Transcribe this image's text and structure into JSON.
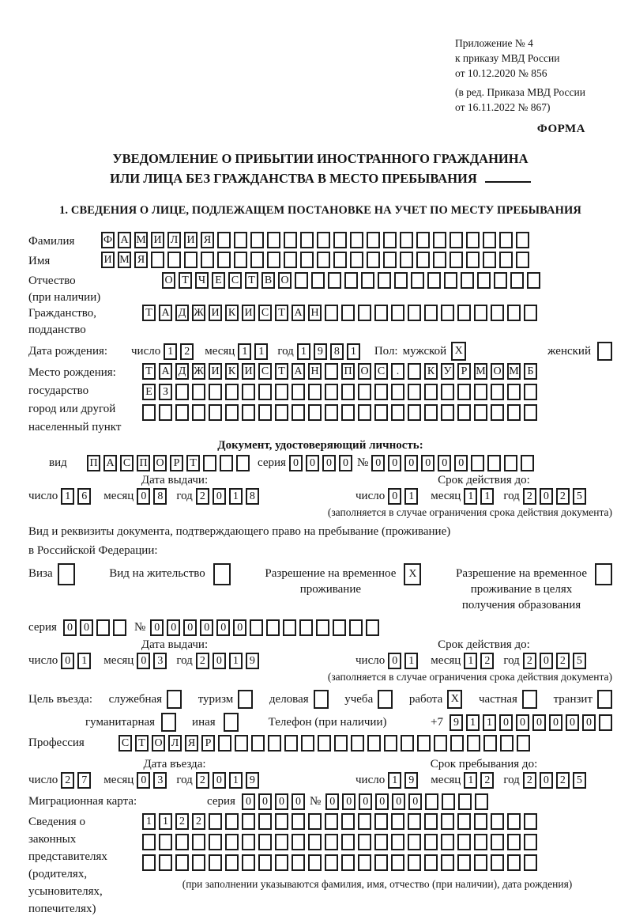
{
  "header": {
    "lines": [
      "Приложение № 4",
      "к приказу МВД России",
      "от 10.12.2020 № 856"
    ],
    "amendment_lines": [
      "(в ред. Приказа МВД России",
      "от 16.11.2022 № 867)"
    ],
    "form_label": "ФОРМА"
  },
  "title": {
    "line1": "УВЕДОМЛЕНИЕ О ПРИБЫТИИ ИНОСТРАННОГО ГРАЖДАНИНА",
    "line2": "ИЛИ ЛИЦА БЕЗ ГРАЖДАНСТВА В МЕСТО ПРЕБЫВАНИЯ"
  },
  "section1_heading": "1. СВЕДЕНИЯ О ЛИЦЕ, ПОДЛЕЖАЩЕМ ПОСТАНОВКЕ НА УЧЕТ ПО МЕСТУ ПРЕБЫВАНИЯ",
  "date_labels": {
    "day": "число",
    "month": "месяц",
    "year": "год"
  },
  "person": {
    "surname": {
      "label": "Фамилия",
      "value": "ФАМИЛИЯ",
      "boxes": 26
    },
    "given_name": {
      "label": "Имя",
      "value": "ИМЯ",
      "boxes": 26
    },
    "patronymic": {
      "label": "Отчество",
      "label_note": "(при наличии)",
      "value": "ОТЧЕСТВО",
      "boxes": 23
    },
    "citizenship": {
      "label": "Гражданство,",
      "label2": "подданство",
      "value": "ТАДЖИКИСТАН",
      "boxes": 24
    },
    "birth_date": {
      "label": "Дата рождения:",
      "day": "12",
      "month": "11",
      "year": "1981"
    },
    "sex": {
      "label": "Пол:",
      "male_label": "мужской",
      "male": "X",
      "female_label": "женский",
      "female": ""
    },
    "birth_place": {
      "label_lines": [
        "Место рождения:",
        "государство",
        "город или другой",
        "населенный пункт"
      ],
      "rows": [
        {
          "value": "ТАДЖИКИСТАН ПОС. КУРМОМБ",
          "boxes": 24
        },
        {
          "value": "ЕЗ",
          "boxes": 24
        },
        {
          "value": "",
          "boxes": 24
        }
      ]
    }
  },
  "identity_doc": {
    "heading": "Документ, удостоверяющий личность:",
    "kind_label": "вид",
    "kind": {
      "value": "ПАСПОРТ",
      "boxes": 10
    },
    "series_label": "серия",
    "series": {
      "value": "0000",
      "boxes": 4
    },
    "number_label": "№",
    "number": {
      "value": "000000",
      "boxes": 10
    },
    "issue_label": "Дата выдачи:",
    "issue": {
      "day": "16",
      "month": "08",
      "year": "2018"
    },
    "valid_label": "Срок действия до:",
    "valid": {
      "day": "01",
      "month": "11",
      "year": "2025"
    },
    "note": "(заполняется в случае ограничения срока действия документа)"
  },
  "residence_doc": {
    "intro_line1": "Вид и реквизиты документа, подтверждающего право на пребывание (проживание)",
    "intro_line2": "в Российской Федерации:",
    "options": [
      {
        "lines": [
          "Виза"
        ],
        "checked": false
      },
      {
        "lines": [
          "Вид на жительство"
        ],
        "checked": false
      },
      {
        "lines": [
          "Разрешение на временное",
          "проживание"
        ],
        "checked": true
      },
      {
        "lines": [
          "Разрешение на временное",
          "проживание в целях",
          "получения образования"
        ],
        "checked": false
      }
    ],
    "series_label": "серия",
    "series": {
      "value": "00",
      "boxes": 4
    },
    "number_label": "№",
    "number": {
      "value": "000000",
      "boxes": 14
    },
    "issue_label": "Дата выдачи:",
    "issue": {
      "day": "01",
      "month": "03",
      "year": "2019"
    },
    "valid_label": "Срок действия до:",
    "valid": {
      "day": "01",
      "month": "12",
      "year": "2025"
    },
    "note": "(заполняется в случае ограничения срока действия документа)"
  },
  "visit": {
    "purpose_label": "Цель въезда:",
    "purposes_row1": [
      {
        "label": "служебная",
        "checked": false
      },
      {
        "label": "туризм",
        "checked": false
      },
      {
        "label": "деловая",
        "checked": false
      },
      {
        "label": "учеба",
        "checked": false
      },
      {
        "label": "работа",
        "checked": true
      },
      {
        "label": "частная",
        "checked": false
      },
      {
        "label": "транзит",
        "checked": false
      }
    ],
    "purposes_row2": [
      {
        "label": "гуманитарная",
        "checked": false
      },
      {
        "label": "иная",
        "checked": false
      }
    ],
    "phone_label": "Телефон (при наличии)",
    "phone_prefix": "+7",
    "phone": {
      "value": "911000000",
      "boxes": 10
    },
    "profession_label": "Профессия",
    "profession": {
      "value": "СТОЛЯР",
      "boxes": 25
    },
    "entry_label": "Дата въезда:",
    "entry": {
      "day": "27",
      "month": "03",
      "year": "2019"
    },
    "stay_label": "Срок пребывания до:",
    "stay": {
      "day": "19",
      "month": "12",
      "year": "2025"
    }
  },
  "migration_card": {
    "label": "Миграционная карта:",
    "series_label": "серия",
    "series": {
      "value": "0000",
      "boxes": 4
    },
    "number_label": "№",
    "number": {
      "value": "000000",
      "boxes": 10
    }
  },
  "representatives": {
    "label_lines": [
      "Сведения о",
      "законных",
      "представителях",
      "(родителях,",
      "усыновителях,",
      "попечителях)"
    ],
    "rows": [
      {
        "value": "1122",
        "boxes": 24
      },
      {
        "value": "",
        "boxes": 24
      },
      {
        "value": "",
        "boxes": 24
      }
    ],
    "note": "(при заполнении указываются фамилия, имя, отчество (при наличии), дата рождения)"
  }
}
